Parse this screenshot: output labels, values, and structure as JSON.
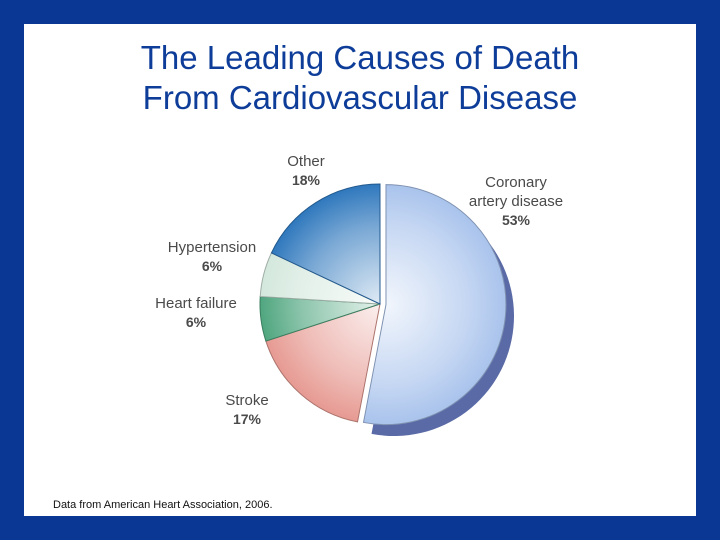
{
  "slide": {
    "title_line1": "The Leading Causes of Death",
    "title_line2": "From Cardiovascular Disease",
    "source": "Data from American Heart Association, 2006."
  },
  "colors": {
    "frame": "#0a3694",
    "title": "#0e3d99",
    "coronary": "#a9c3ec",
    "stroke": "#e69a92",
    "heart_failure": "#4fa67f",
    "hypertension": "#d4e8dd",
    "other": "#2f78bd"
  },
  "chart_data": {
    "type": "pie",
    "title": "",
    "slices": [
      {
        "label_lines": [
          "Coronary",
          "artery disease"
        ],
        "value": 53,
        "value_label": "53%",
        "color": "#a9c3ec"
      },
      {
        "label_lines": [
          "Stroke"
        ],
        "value": 17,
        "value_label": "17%",
        "color": "#e69a92"
      },
      {
        "label_lines": [
          "Heart failure"
        ],
        "value": 6,
        "value_label": "6%",
        "color": "#4fa67f"
      },
      {
        "label_lines": [
          "Hypertension"
        ],
        "value": 6,
        "value_label": "6%",
        "color": "#d4e8dd"
      },
      {
        "label_lines": [
          "Other"
        ],
        "value": 18,
        "value_label": "18%",
        "color": "#2f78bd"
      }
    ]
  }
}
